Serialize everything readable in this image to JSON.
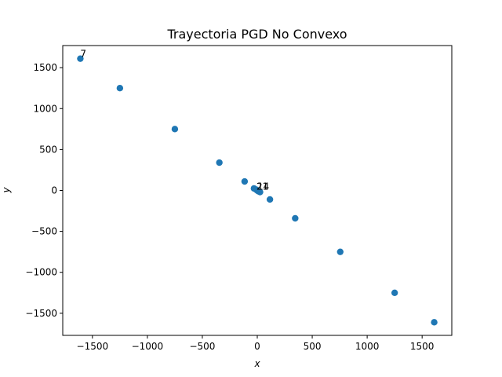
{
  "chart_data": {
    "type": "scatter",
    "title": "Trayectoria PGD No Convexo",
    "xlabel": "x",
    "ylabel": "y",
    "xlim": [
      -1770,
      1770
    ],
    "ylim": [
      -1770,
      1770
    ],
    "xticks": [
      -1500,
      -1000,
      -500,
      0,
      500,
      1000,
      1500
    ],
    "yticks": [
      -1500,
      -1000,
      -500,
      0,
      500,
      1000,
      1500
    ],
    "xtick_labels": [
      "−1500",
      "−1000",
      "−500",
      "0",
      "500",
      "1000",
      "1500"
    ],
    "ytick_labels": [
      "−1500",
      "−1000",
      "−500",
      "0",
      "500",
      "1000",
      "1500"
    ],
    "grid": false,
    "color": "#1f77b4",
    "points": [
      {
        "x": -1610,
        "y": 1610
      },
      {
        "x": -1250,
        "y": 1250
      },
      {
        "x": -750,
        "y": 750
      },
      {
        "x": -345,
        "y": 340
      },
      {
        "x": -115,
        "y": 110
      },
      {
        "x": -30,
        "y": 25
      },
      {
        "x": -10,
        "y": 10
      },
      {
        "x": 0,
        "y": 0
      },
      {
        "x": 10,
        "y": -10
      },
      {
        "x": 25,
        "y": -20
      },
      {
        "x": 115,
        "y": -110
      },
      {
        "x": 345,
        "y": -340
      },
      {
        "x": 755,
        "y": -750
      },
      {
        "x": 1250,
        "y": -1250
      },
      {
        "x": 1610,
        "y": -1610
      }
    ],
    "annotations": [
      {
        "text": "7",
        "x": -1610,
        "y": 1610
      },
      {
        "text": "21",
        "x": 0,
        "y": 0
      },
      {
        "text": "14",
        "x": 0,
        "y": 0
      }
    ]
  }
}
